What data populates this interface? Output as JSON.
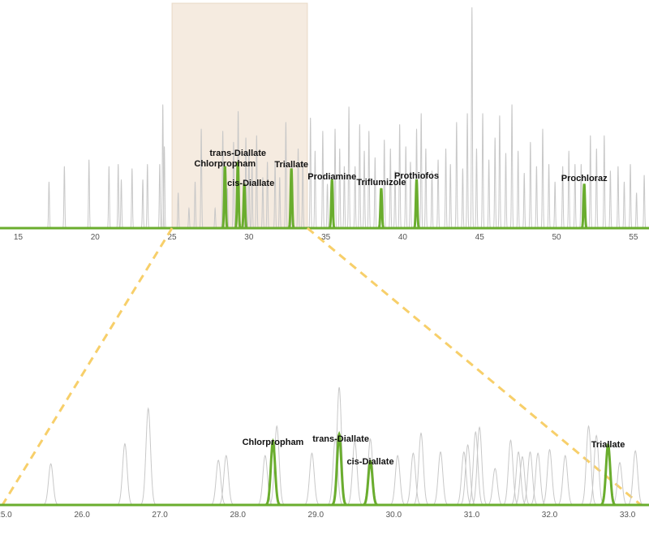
{
  "colors": {
    "target": "#6aad2e",
    "background_peaks": "#c8c8c8",
    "axis": "#6aad2e",
    "highlight_fill": "#f5ebe0",
    "highlight_stroke": "#e8d8c5",
    "connector": "#f7cf6a"
  },
  "chart_data": [
    {
      "id": "overview",
      "type": "line",
      "title": "",
      "xlabel": "",
      "ylabel": "",
      "xlim": [
        14.5,
        55.8
      ],
      "ylim": [
        0,
        100
      ],
      "ticks": [
        15,
        20,
        25,
        30,
        35,
        40,
        45,
        50,
        55
      ],
      "tick_labels": [
        "15",
        "20",
        "25",
        "30",
        "35",
        "40",
        "45",
        "50",
        "55"
      ],
      "zoom_window": [
        25,
        33.8
      ],
      "background_peaks": [
        [
          17.0,
          21
        ],
        [
          18.0,
          28
        ],
        [
          19.6,
          31
        ],
        [
          20.9,
          28
        ],
        [
          21.5,
          29
        ],
        [
          21.7,
          22
        ],
        [
          22.4,
          27
        ],
        [
          23.1,
          22
        ],
        [
          23.4,
          29
        ],
        [
          24.2,
          29
        ],
        [
          24.4,
          56
        ],
        [
          24.5,
          37
        ],
        [
          25.4,
          16
        ],
        [
          26.1,
          9
        ],
        [
          26.5,
          21
        ],
        [
          26.9,
          45
        ],
        [
          27.8,
          9
        ],
        [
          28.3,
          44
        ],
        [
          28.6,
          18
        ],
        [
          29.0,
          39
        ],
        [
          29.3,
          53
        ],
        [
          29.8,
          41
        ],
        [
          30.0,
          35
        ],
        [
          30.2,
          30
        ],
        [
          30.5,
          42
        ],
        [
          30.9,
          23
        ],
        [
          31.2,
          30
        ],
        [
          31.7,
          30
        ],
        [
          32.0,
          23
        ],
        [
          32.4,
          48
        ],
        [
          32.8,
          30
        ],
        [
          33.2,
          36
        ],
        [
          33.5,
          30
        ],
        [
          34.0,
          50
        ],
        [
          34.3,
          35
        ],
        [
          34.8,
          44
        ],
        [
          35.1,
          20
        ],
        [
          35.6,
          45
        ],
        [
          35.9,
          36
        ],
        [
          36.2,
          28
        ],
        [
          36.5,
          55
        ],
        [
          36.9,
          28
        ],
        [
          37.2,
          47
        ],
        [
          37.5,
          35
        ],
        [
          37.8,
          44
        ],
        [
          38.2,
          32
        ],
        [
          38.8,
          40
        ],
        [
          39.2,
          36
        ],
        [
          39.5,
          26
        ],
        [
          39.8,
          47
        ],
        [
          40.2,
          37
        ],
        [
          40.5,
          30
        ],
        [
          40.9,
          45
        ],
        [
          41.2,
          52
        ],
        [
          41.5,
          36
        ],
        [
          41.9,
          26
        ],
        [
          42.3,
          31
        ],
        [
          42.8,
          36
        ],
        [
          43.1,
          29
        ],
        [
          43.5,
          48
        ],
        [
          43.9,
          27
        ],
        [
          44.2,
          52
        ],
        [
          44.5,
          100
        ],
        [
          44.8,
          36
        ],
        [
          45.2,
          52
        ],
        [
          45.6,
          31
        ],
        [
          46.0,
          41
        ],
        [
          46.3,
          51
        ],
        [
          46.7,
          34
        ],
        [
          47.1,
          56
        ],
        [
          47.5,
          35
        ],
        [
          47.9,
          25
        ],
        [
          48.3,
          39
        ],
        [
          48.7,
          28
        ],
        [
          49.1,
          45
        ],
        [
          49.5,
          29
        ],
        [
          49.9,
          21
        ],
        [
          50.4,
          28
        ],
        [
          50.8,
          35
        ],
        [
          51.2,
          29
        ],
        [
          51.6,
          29
        ],
        [
          52.2,
          42
        ],
        [
          52.6,
          36
        ],
        [
          53.1,
          42
        ],
        [
          53.5,
          26
        ],
        [
          54.0,
          28
        ],
        [
          54.4,
          21
        ],
        [
          54.8,
          29
        ],
        [
          55.2,
          16
        ],
        [
          55.7,
          24
        ]
      ],
      "target_peaks": [
        {
          "name": "Chlorpropham",
          "rt": 28.44,
          "height": 28
        },
        {
          "name": "trans-Diallate",
          "rt": 29.28,
          "height": 30
        },
        {
          "name": "cis-Diallate",
          "rt": 29.7,
          "height": 20
        },
        {
          "name": "Triallate",
          "rt": 32.76,
          "height": 27
        },
        {
          "name": "Prodiamine",
          "rt": 35.4,
          "height": 22
        },
        {
          "name": "Triflumizole",
          "rt": 38.6,
          "height": 18
        },
        {
          "name": "Prothiofos",
          "rt": 40.9,
          "height": 22
        },
        {
          "name": "Prochloraz",
          "rt": 51.8,
          "height": 20
        }
      ]
    },
    {
      "id": "zoom",
      "type": "line",
      "title": "",
      "xlabel": "",
      "ylabel": "",
      "xlim": [
        25.0,
        33.15
      ],
      "ylim": [
        0,
        100
      ],
      "ticks": [
        25.0,
        26.0,
        27.0,
        28.0,
        29.0,
        30.0,
        31.0,
        32.0,
        33.0
      ],
      "tick_labels": [
        "25.0",
        "26.0",
        "27.0",
        "28.0",
        "29.0",
        "30.0",
        "31.0",
        "32.0",
        "33.0"
      ],
      "background_peaks": [
        [
          25.6,
          35
        ],
        [
          26.55,
          52
        ],
        [
          26.85,
          82
        ],
        [
          27.75,
          38
        ],
        [
          27.85,
          42
        ],
        [
          28.35,
          42
        ],
        [
          28.5,
          67
        ],
        [
          28.95,
          44
        ],
        [
          29.25,
          56
        ],
        [
          29.3,
          100
        ],
        [
          29.5,
          54
        ],
        [
          29.7,
          56
        ],
        [
          30.05,
          42
        ],
        [
          30.25,
          44
        ],
        [
          30.35,
          61
        ],
        [
          30.6,
          45
        ],
        [
          30.9,
          45
        ],
        [
          30.95,
          51
        ],
        [
          31.05,
          62
        ],
        [
          31.1,
          66
        ],
        [
          31.3,
          31
        ],
        [
          31.5,
          55
        ],
        [
          31.6,
          45
        ],
        [
          31.65,
          41
        ],
        [
          31.75,
          45
        ],
        [
          31.85,
          44
        ],
        [
          32.0,
          47
        ],
        [
          32.2,
          42
        ],
        [
          32.5,
          67
        ],
        [
          32.6,
          59
        ],
        [
          32.9,
          36
        ],
        [
          33.1,
          46
        ]
      ],
      "target_peaks": [
        {
          "name": "Chlorpropham",
          "rt": 28.45,
          "height": 54
        },
        {
          "name": "trans-Diallate",
          "rt": 29.3,
          "height": 60
        },
        {
          "name": "cis-Diallate",
          "rt": 29.7,
          "height": 37
        },
        {
          "name": "Triallate",
          "rt": 32.75,
          "height": 51
        }
      ]
    }
  ]
}
